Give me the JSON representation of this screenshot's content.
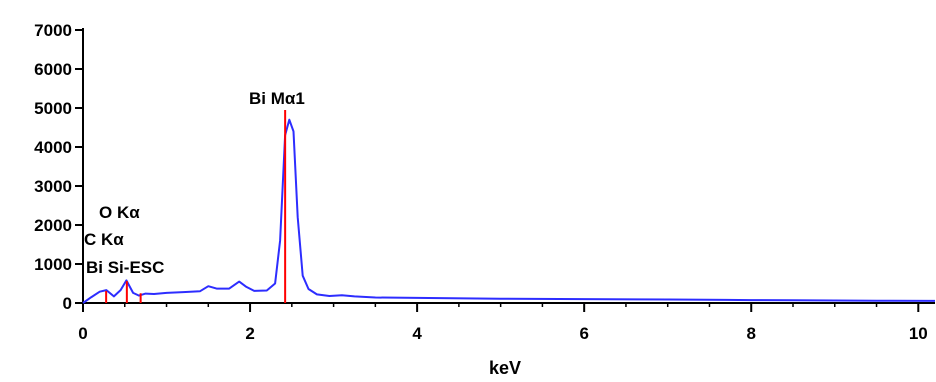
{
  "chart_data": {
    "type": "line",
    "title": "",
    "xlabel": "keV",
    "ylabel": "",
    "xlim": [
      0,
      10.2
    ],
    "ylim": [
      0,
      7000
    ],
    "x_ticks": [
      0,
      2,
      4,
      6,
      8,
      10
    ],
    "x_tick_labels": [
      "0",
      "2",
      "4",
      "6",
      "8",
      "10"
    ],
    "y_ticks": [
      0,
      1000,
      2000,
      3000,
      4000,
      5000,
      6000,
      7000
    ],
    "y_tick_labels": [
      "0",
      "1000",
      "2000",
      "3000",
      "4000",
      "5000",
      "6000",
      "7000"
    ],
    "grid": false,
    "series": [
      {
        "color": "#2d2dff",
        "x": [
          0.0,
          0.1,
          0.2,
          0.28,
          0.37,
          0.45,
          0.52,
          0.6,
          0.67,
          0.75,
          0.85,
          1.0,
          1.2,
          1.4,
          1.5,
          1.6,
          1.75,
          1.87,
          1.95,
          2.05,
          2.2,
          2.3,
          2.36,
          2.42,
          2.47,
          2.52,
          2.57,
          2.63,
          2.7,
          2.8,
          2.95,
          3.1,
          3.25,
          3.5,
          4.0,
          5.0,
          6.0,
          7.0,
          7.7,
          8.0,
          8.5,
          9.0,
          9.5,
          10.2
        ],
        "y": [
          0,
          150,
          290,
          330,
          170,
          330,
          580,
          260,
          190,
          240,
          230,
          260,
          280,
          300,
          430,
          370,
          370,
          550,
          420,
          310,
          320,
          500,
          1600,
          4300,
          4700,
          4400,
          2200,
          700,
          360,
          220,
          180,
          200,
          170,
          140,
          130,
          110,
          100,
          90,
          80,
          75,
          70,
          65,
          60,
          55
        ]
      }
    ],
    "markers": [
      {
        "x": 0.277,
        "y": 310,
        "color": "#ff0000"
      },
      {
        "x": 0.525,
        "y": 560,
        "color": "#ff0000"
      },
      {
        "x": 0.69,
        "y": 250,
        "color": "#ff0000"
      },
      {
        "x": 2.42,
        "y": 4950,
        "color": "#ff0000"
      }
    ],
    "annotations": [
      {
        "text": "Bi Mα1",
        "x": 2.42
      },
      {
        "text": "O Kα",
        "x": 0.525
      },
      {
        "text": "C Kα",
        "x": 0.277
      },
      {
        "text": "Bi Si-ESC",
        "x": 0.69
      }
    ]
  }
}
